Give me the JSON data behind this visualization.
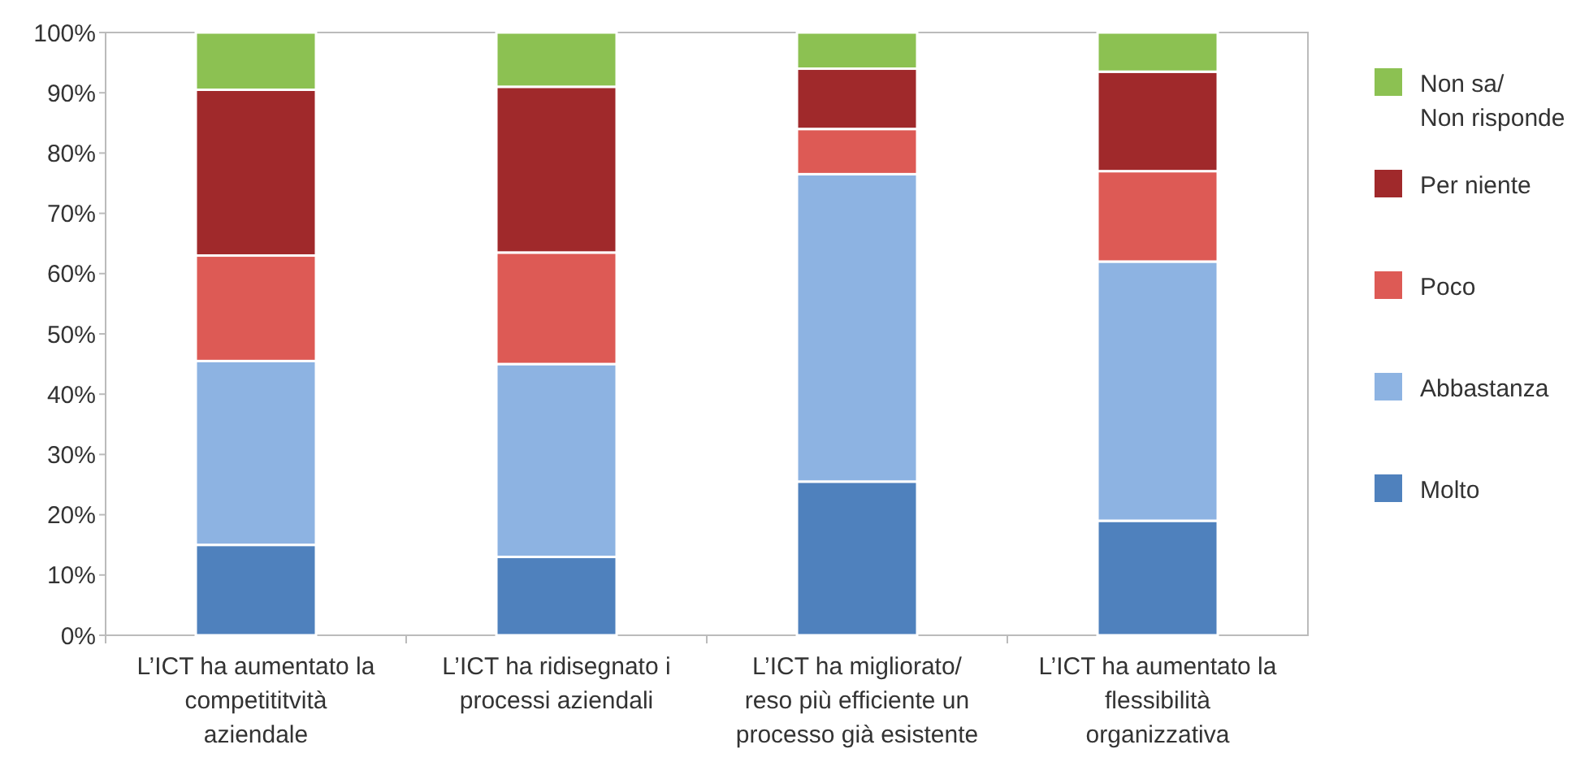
{
  "chart_data": {
    "type": "bar",
    "stacked": true,
    "categories": [
      "L’ICT ha aumentato la competititvità aziendale",
      "L’ICT ha ridisegnato i processi aziendali",
      "L’ICT ha migliorato/ reso più efficiente un processo già esistente",
      "L’ICT ha aumentato la flessibilità organizzativa"
    ],
    "series": [
      {
        "name": "Molto",
        "color": "#4f81bd",
        "values": [
          15,
          13,
          25.5,
          19
        ]
      },
      {
        "name": "Abbastanza",
        "color": "#8db3e2",
        "values": [
          30.5,
          32,
          51,
          43
        ]
      },
      {
        "name": "Poco",
        "color": "#dd5a55",
        "values": [
          17.5,
          18.5,
          7.5,
          15
        ]
      },
      {
        "name": "Per niente",
        "color": "#a0292b",
        "values": [
          27.5,
          27.5,
          10,
          16.5
        ]
      },
      {
        "name": "Non sa/ Non risponde",
        "color": "#8cc152",
        "values": [
          9.5,
          9,
          6,
          6.5
        ]
      }
    ],
    "ylim": [
      0,
      100
    ],
    "yticks": [
      {
        "value": 0,
        "label": "0%"
      },
      {
        "value": 10,
        "label": "10%"
      },
      {
        "value": 20,
        "label": "20%"
      },
      {
        "value": 30,
        "label": "30%"
      },
      {
        "value": 40,
        "label": "40%"
      },
      {
        "value": 50,
        "label": "50%"
      },
      {
        "value": 60,
        "label": "60%"
      },
      {
        "value": 70,
        "label": "70%"
      },
      {
        "value": 80,
        "label": "80%"
      },
      {
        "value": 90,
        "label": "90%"
      },
      {
        "value": 100,
        "label": "100%"
      }
    ],
    "grid": false,
    "legend": "right"
  }
}
